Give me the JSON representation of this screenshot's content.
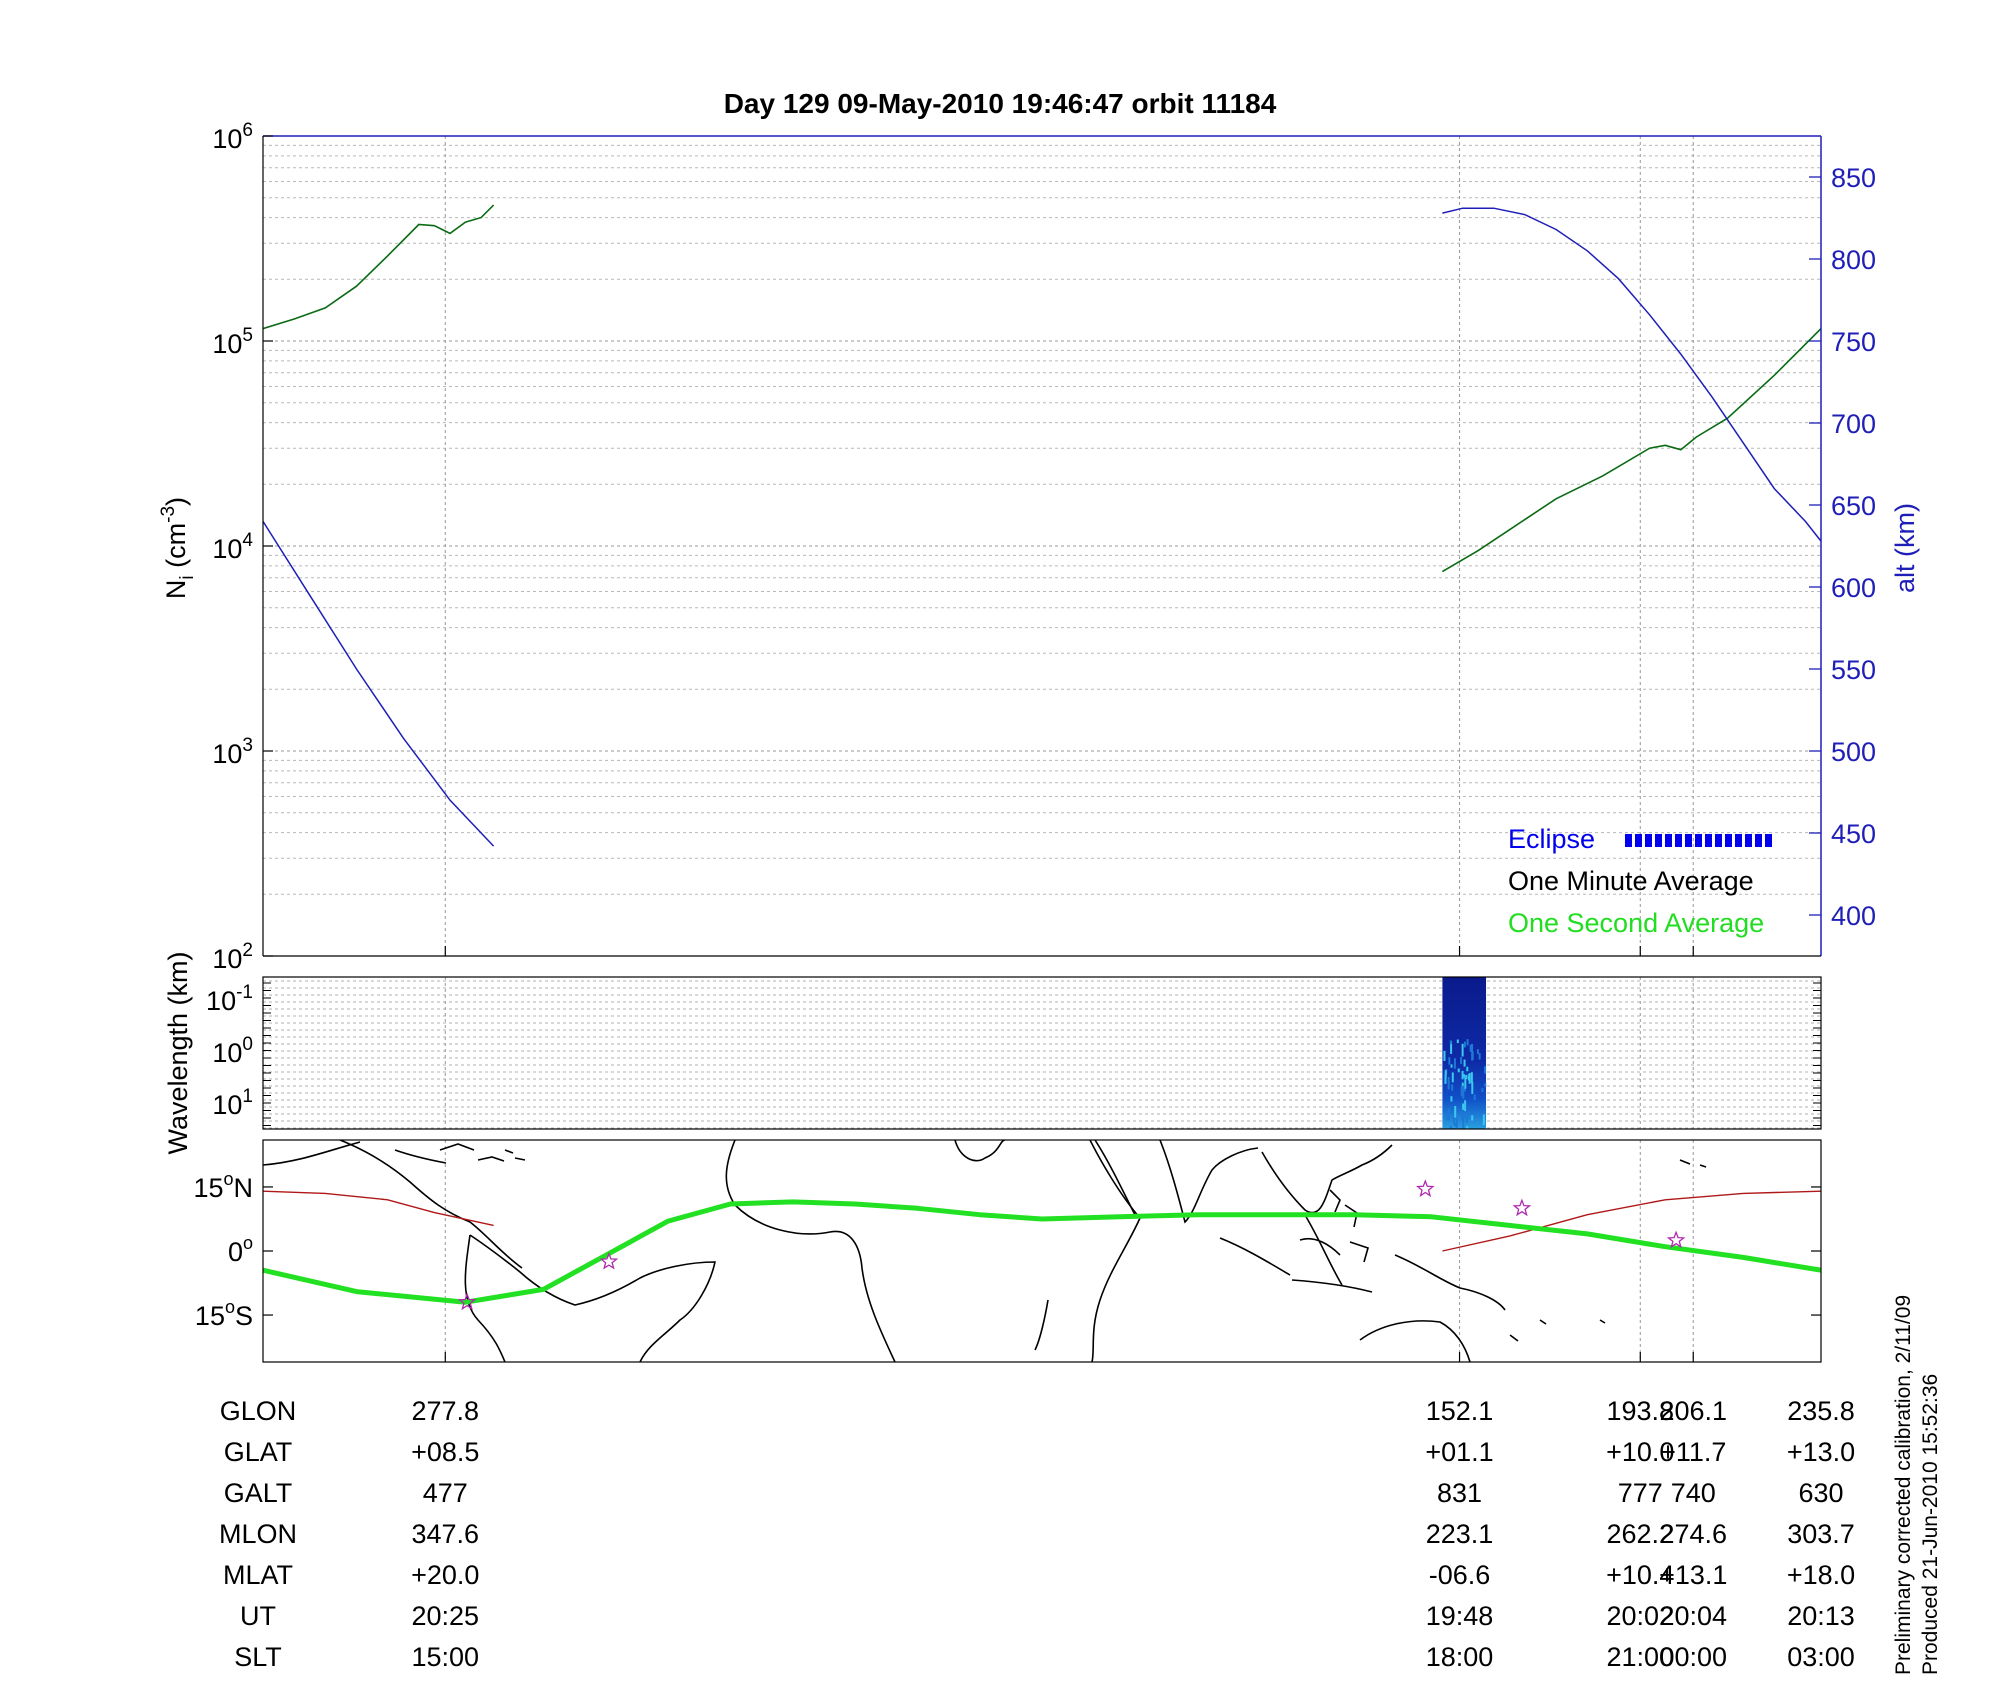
{
  "title": "Day 129  09-May-2010 19:46:47   orbit 11184",
  "colors": {
    "density": "#0a6b14",
    "altitude": "#1f1fb8",
    "track": "#22e022",
    "terminator": "#b01818",
    "star": "#b02ab0",
    "eclipse": "#0000ee",
    "spectro": "#0a1a8c",
    "legend_green": "#22dd22"
  },
  "chart_data": [
    {
      "type": "line",
      "name": "density-altitude",
      "xlim": [
        0,
        1
      ],
      "y_left_scale": "log",
      "y_left_range": [
        100,
        1000000
      ],
      "y_left_label_main": "N",
      "y_left_label_sub": "i",
      "y_left_label_unit": " (cm",
      "y_left_label_exp": "-3",
      "y_left_label_end": ")",
      "y_left_ticks": [
        {
          "base": "10",
          "exp": "6",
          "value": 1000000
        },
        {
          "base": "10",
          "exp": "5",
          "value": 100000
        },
        {
          "base": "10",
          "exp": "4",
          "value": 10000
        },
        {
          "base": "10",
          "exp": "3",
          "value": 1000
        },
        {
          "base": "10",
          "exp": "2",
          "value": 100
        }
      ],
      "y_right_range": [
        375,
        875
      ],
      "y_right_label": "alt (km)",
      "y_right_ticks": [
        "850",
        "800",
        "750",
        "700",
        "650",
        "600",
        "550",
        "500",
        "450",
        "400"
      ],
      "series": [
        {
          "key": "density_1",
          "color": "density",
          "x": [
            0.0,
            0.02,
            0.04,
            0.06,
            0.08,
            0.1,
            0.11,
            0.12,
            0.13,
            0.14,
            0.148
          ],
          "y": [
            115000,
            128000,
            145000,
            185000,
            260000,
            370000,
            365000,
            335000,
            380000,
            400000,
            460000
          ]
        },
        {
          "key": "density_2",
          "color": "density",
          "x": [
            0.757,
            0.78,
            0.8,
            0.83,
            0.86,
            0.89,
            0.9,
            0.91,
            0.92,
            0.94,
            0.97,
            1.0
          ],
          "y": [
            7500,
            9500,
            12000,
            17000,
            22000,
            30000,
            31000,
            29500,
            34000,
            42000,
            68000,
            115000
          ]
        },
        {
          "key": "altitude_1",
          "axis": "right",
          "color": "altitude",
          "x": [
            0.0,
            0.03,
            0.06,
            0.09,
            0.12,
            0.148
          ],
          "y": [
            640,
            595,
            550,
            508,
            470,
            442
          ]
        },
        {
          "key": "altitude_2",
          "axis": "right",
          "color": "altitude",
          "x": [
            0.757,
            0.77,
            0.79,
            0.81,
            0.83,
            0.85,
            0.87,
            0.89,
            0.91,
            0.93,
            0.95,
            0.97,
            0.99,
            1.0
          ],
          "y": [
            828,
            831,
            831,
            827,
            818,
            805,
            788,
            766,
            742,
            716,
            688,
            660,
            640,
            628
          ]
        }
      ],
      "legend": {
        "position": "bottom-right",
        "eclipse_label": "Eclipse",
        "minute_label": "One Minute Average",
        "second_label": "One Second Average"
      }
    },
    {
      "type": "heatmap",
      "name": "wavelength-spectrogram",
      "y_label": "Wavelength (km)",
      "y_ticks": [
        {
          "base": "10",
          "exp": "-1"
        },
        {
          "base": "10",
          "exp": "0"
        },
        {
          "base": "10",
          "exp": "1"
        }
      ],
      "block_x": [
        0.757,
        0.785
      ]
    },
    {
      "type": "line",
      "name": "ground-track-map",
      "y_ticks": [
        {
          "num": "15",
          "unit": "N",
          "lat": 15
        },
        {
          "num": "0",
          "unit": "",
          "lat": 0
        },
        {
          "num": "15",
          "unit": "S",
          "lat": -15
        }
      ],
      "lat_range": [
        -26,
        26
      ],
      "track": {
        "x": [
          0.0,
          0.06,
          0.13,
          0.18,
          0.22,
          0.26,
          0.3,
          0.34,
          0.38,
          0.42,
          0.46,
          0.5,
          0.55,
          0.6,
          0.65,
          0.7,
          0.75,
          0.8,
          0.85,
          0.9,
          0.95,
          1.0
        ],
        "lat": [
          -4.5,
          -9.5,
          -12.0,
          -9.0,
          -1.0,
          7.0,
          11.0,
          11.5,
          11.0,
          10.0,
          8.5,
          7.5,
          8.0,
          8.5,
          8.5,
          8.5,
          8.0,
          6.0,
          4.0,
          1.0,
          -1.5,
          -4.5
        ]
      },
      "terminator_1": {
        "x": [
          0.0,
          0.04,
          0.08,
          0.11,
          0.148
        ],
        "lat": [
          14,
          13.5,
          12,
          9,
          6
        ]
      },
      "terminator_2": {
        "x": [
          0.757,
          0.8,
          0.85,
          0.9,
          0.95,
          1.0
        ],
        "lat": [
          0,
          3.5,
          8.5,
          12,
          13.5,
          14
        ]
      },
      "stars": [
        {
          "x": 0.131,
          "lat": -12
        },
        {
          "x": 0.222,
          "lat": -2.5
        },
        {
          "x": 0.746,
          "lat": 14.5
        },
        {
          "x": 0.808,
          "lat": 10
        },
        {
          "x": 0.907,
          "lat": 2.5
        }
      ]
    }
  ],
  "vertical_markers": [
    0.117,
    0.768,
    0.884,
    0.918
  ],
  "table": {
    "row_labels": [
      "GLON",
      "GLAT",
      "GALT",
      "MLON",
      "MLAT",
      "UT",
      "SLT"
    ],
    "columns": [
      {
        "x": 0.117,
        "values": [
          "277.8",
          "+08.5",
          "477",
          "347.6",
          "+20.0",
          "20:25",
          "15:00"
        ]
      },
      {
        "x": 0.768,
        "values": [
          "152.1",
          "+01.1",
          "831",
          "223.1",
          "-06.6",
          "19:48",
          "18:00"
        ]
      },
      {
        "x": 0.884,
        "values": [
          "193.8",
          "+10.0",
          "777",
          "262.2",
          "+10.4",
          "20:02",
          "21:00"
        ]
      },
      {
        "x": 0.918,
        "values": [
          "206.1",
          "+11.7",
          "740",
          "274.6",
          "+13.1",
          "20:04",
          "00:00"
        ]
      },
      {
        "x": 1.0,
        "values": [
          "235.8",
          "+13.0",
          "630",
          "303.7",
          "+18.0",
          "20:13",
          "03:00"
        ]
      }
    ]
  },
  "footnote": {
    "line1": "Preliminary corrected calibration, 2/11/09",
    "line2": "Produced 21-Jun-2010 15:52:36"
  }
}
